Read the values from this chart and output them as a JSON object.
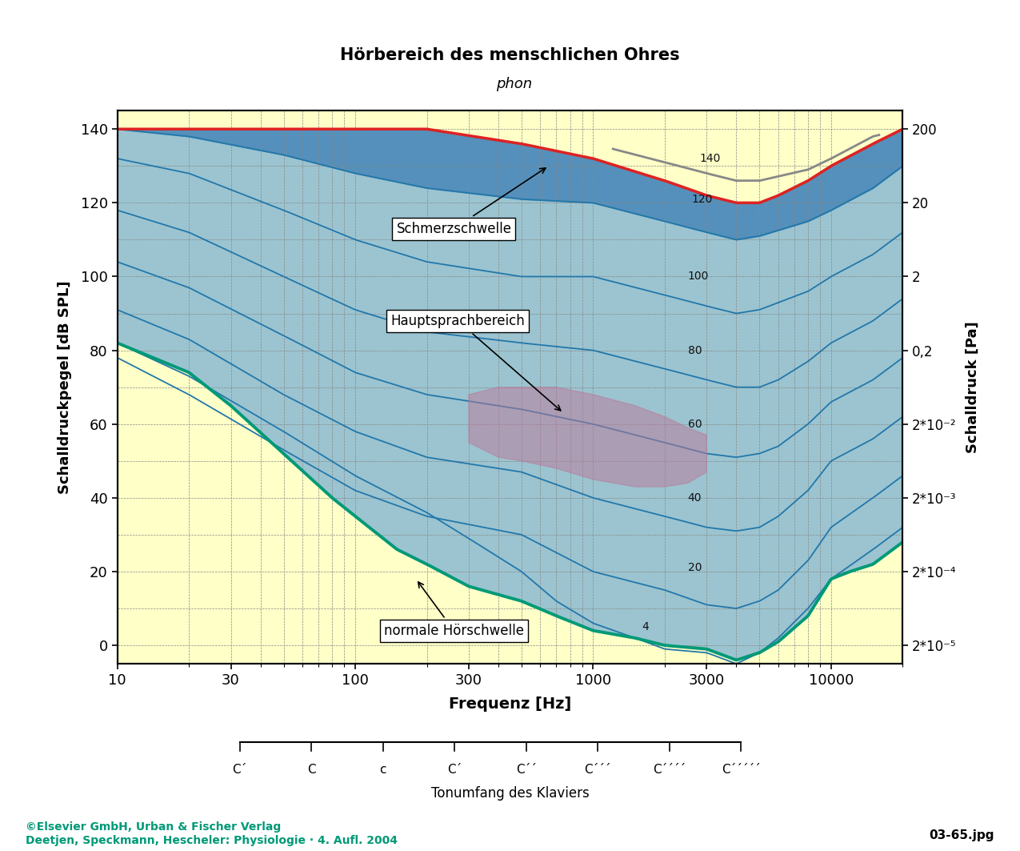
{
  "title": "Hörbereich des menschlichen Ohres",
  "xlabel": "Frequenz [Hz]",
  "ylabel_left": "Schalldruckpegel [dB SPL]",
  "ylabel_right": "Schalldruck [Pa]",
  "ylabel_center": "phon",
  "freq_ticks": [
    10,
    30,
    100,
    300,
    1000,
    3000,
    10000
  ],
  "ylim": [
    -5,
    145
  ],
  "right_axis_db": [
    140,
    120,
    100,
    80,
    60,
    40,
    20,
    0
  ],
  "right_axis_labels": [
    "200",
    "20",
    "2",
    "0,2",
    "2*10⁻²",
    "2*10⁻³",
    "2*10⁻⁴",
    "2*10⁻⁵"
  ],
  "plot_bg_yellow": "#FFFFC8",
  "annotation_schmerz": "Schmerzschwelle",
  "annotation_haupt": "Hauptsprachbereich",
  "annotation_hoer": "normale Hörschwelle",
  "piano_freqs": [
    32.7,
    65.4,
    130.8,
    261.6,
    523.3,
    1046.5,
    2093.0,
    4186.0
  ],
  "piano_labels": [
    "C´",
    "C",
    "c",
    "C´",
    "C´´",
    "C´´´",
    "C´´´´",
    "C´´´´´"
  ],
  "footer1": "©Elsevier GmbH, Urban & Fischer Verlag",
  "footer2": "Deetjen, Speckmann, Hescheler: Physiologie · 4. Aufl. 2004",
  "footer_right": "03-65.jpg"
}
